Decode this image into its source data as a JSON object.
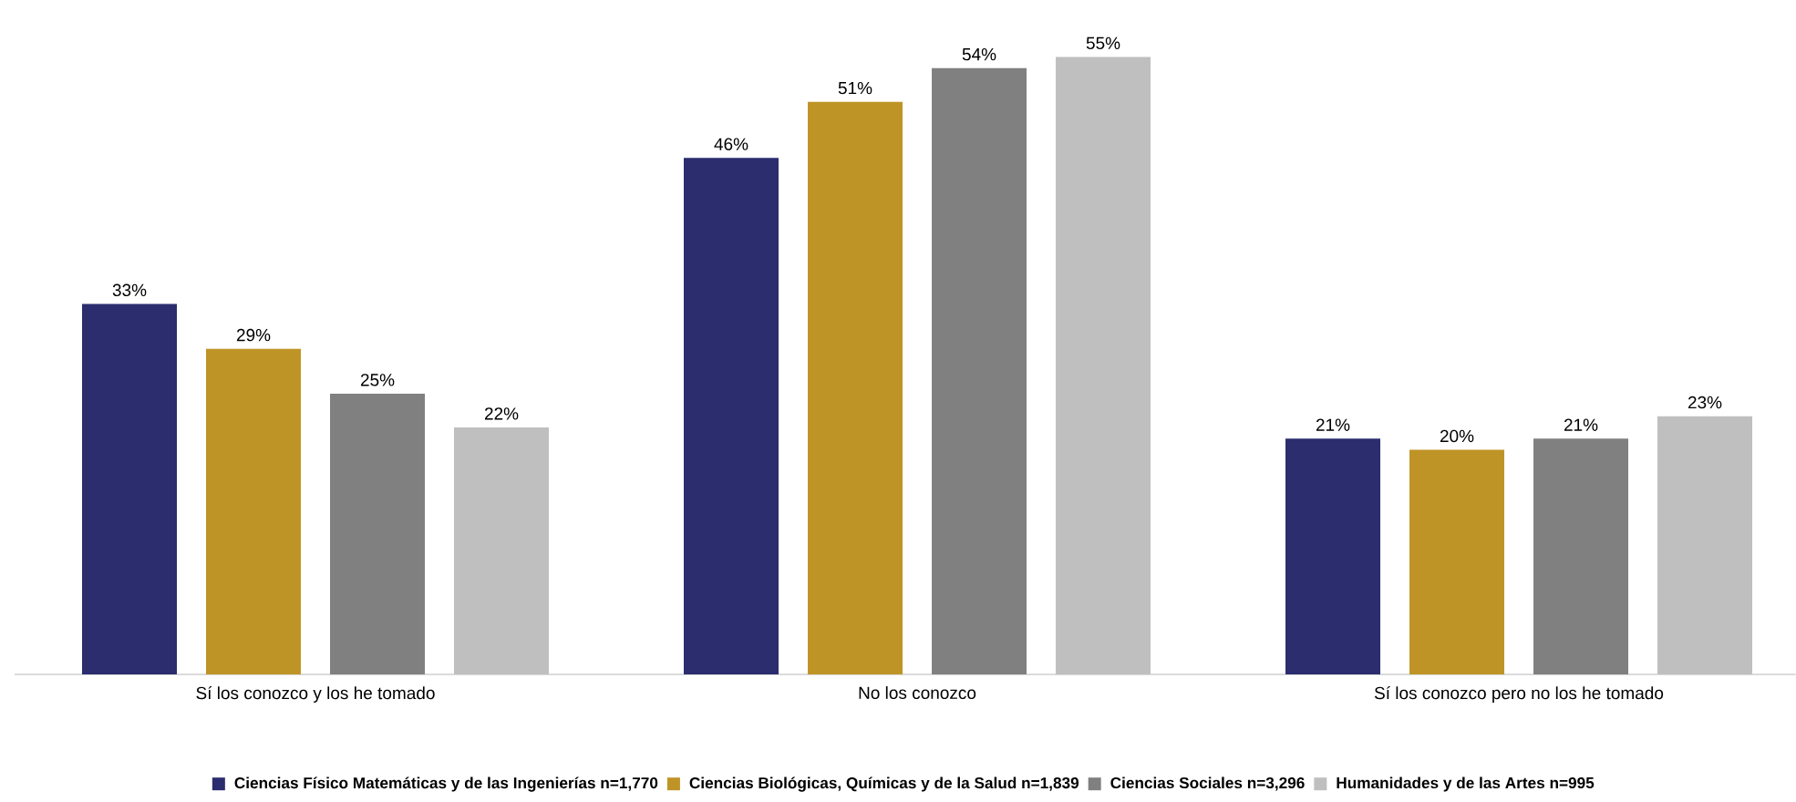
{
  "chart_data": {
    "type": "bar",
    "categories": [
      "Sí los conozco y los he tomado",
      "No los conozco",
      "Sí los conozco pero no los he tomado"
    ],
    "series": [
      {
        "name": "Ciencias Físico Matemáticas y de las Ingenierías n=1,770",
        "color": "#2b2d6e",
        "values": [
          33,
          46,
          21
        ],
        "value_labels": [
          "33%",
          "46%",
          "21%"
        ]
      },
      {
        "name": "Ciencias Biológicas, Químicas y de la Salud n=1,839",
        "color": "#bf9427",
        "values": [
          29,
          51,
          20
        ],
        "value_labels": [
          "29%",
          "51%",
          "20%"
        ]
      },
      {
        "name": "Ciencias Sociales n=3,296",
        "color": "#808080",
        "values": [
          25,
          54,
          21
        ],
        "value_labels": [
          "25%",
          "54%",
          "21%"
        ]
      },
      {
        "name": "Humanidades y de las Artes n=995",
        "color": "#bfbfbf",
        "values": [
          22,
          55,
          23
        ],
        "value_labels": [
          "22%",
          "55%",
          "23%"
        ]
      }
    ],
    "legend": "bottom"
  }
}
